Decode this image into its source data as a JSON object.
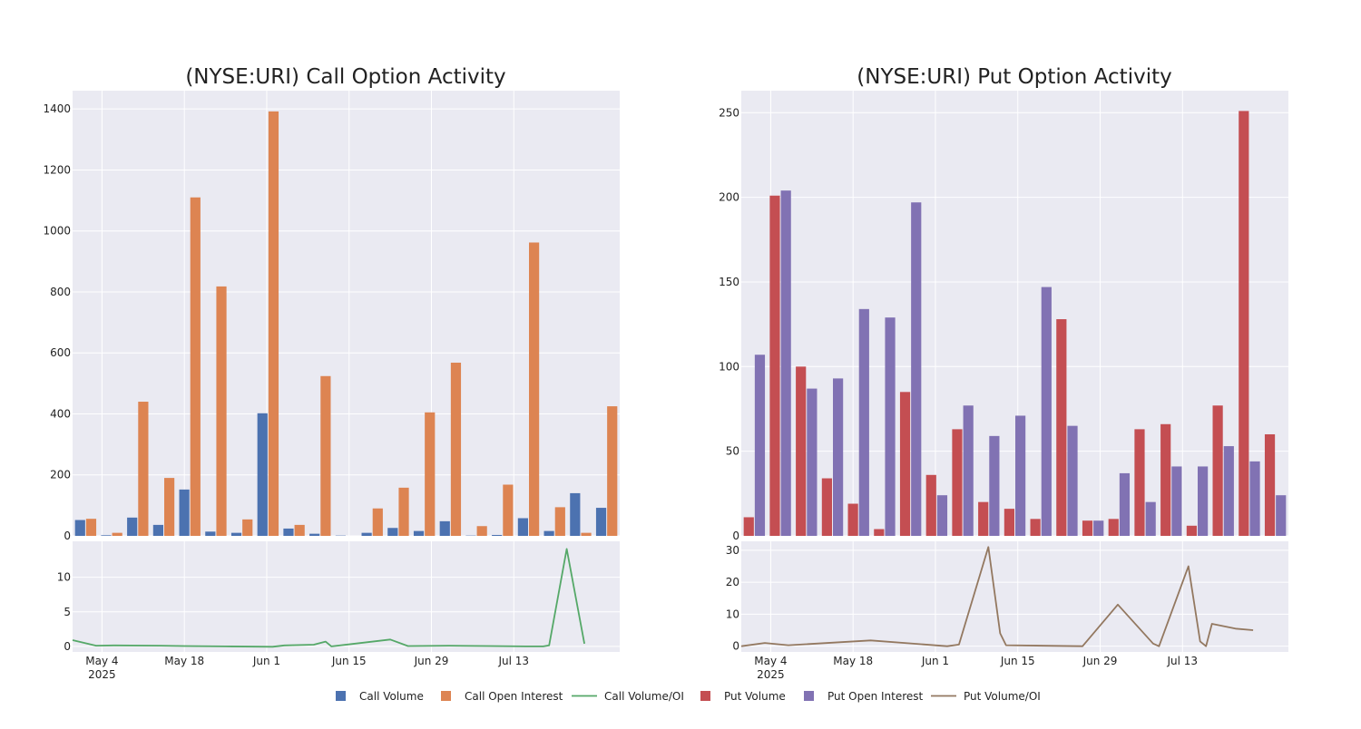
{
  "colors": {
    "call_volume": "#4c72b0",
    "call_open_interest": "#dd8452",
    "call_ratio": "#55a868",
    "put_volume": "#c44e52",
    "put_open_interest": "#8172b3",
    "put_ratio": "#937860",
    "panel_bg": "#eaeaf2",
    "grid": "#ffffff"
  },
  "legend": [
    {
      "label": "Call Volume",
      "kind": "square",
      "color_key": "call_volume"
    },
    {
      "label": "Call Open Interest",
      "kind": "square",
      "color_key": "call_open_interest"
    },
    {
      "label": "Call Volume/OI",
      "kind": "line",
      "color_key": "call_ratio"
    },
    {
      "label": "Put Volume",
      "kind": "square",
      "color_key": "put_volume"
    },
    {
      "label": "Put Open Interest",
      "kind": "square",
      "color_key": "put_open_interest"
    },
    {
      "label": "Put Volume/OI",
      "kind": "line",
      "color_key": "put_ratio"
    }
  ],
  "chart_data": [
    {
      "id": "call",
      "type": "bar",
      "title": "(NYSE:URI) Call Option Activity",
      "xlabel": "",
      "ylabel": "",
      "ylim": [
        0,
        1460
      ],
      "yticks": [
        0,
        200,
        400,
        600,
        800,
        1000,
        1200,
        1400
      ],
      "x_domain": [
        "2025-04-29",
        "2025-07-31"
      ],
      "x_ticks": [
        {
          "date": "2025-05-04",
          "label": "May 4",
          "sublabel": "2025"
        },
        {
          "date": "2025-05-18",
          "label": "May 18",
          "sublabel": ""
        },
        {
          "date": "2025-06-01",
          "label": "Jun 1",
          "sublabel": ""
        },
        {
          "date": "2025-06-15",
          "label": "Jun 15",
          "sublabel": ""
        },
        {
          "date": "2025-06-29",
          "label": "Jun 29",
          "sublabel": ""
        },
        {
          "date": "2025-07-13",
          "label": "Jul 13",
          "sublabel": ""
        }
      ],
      "series": [
        {
          "name": "Call Volume",
          "color_key": "call_volume",
          "values": [
            52,
            2,
            60,
            36,
            152,
            14,
            10,
            402,
            24,
            7,
            1,
            10,
            26,
            16,
            48,
            1,
            3,
            58,
            16,
            140,
            92
          ]
        },
        {
          "name": "Call Open Interest",
          "color_key": "call_open_interest",
          "values": [
            56,
            10,
            440,
            190,
            1110,
            818,
            54,
            1392,
            36,
            524,
            0,
            90,
            158,
            405,
            568,
            32,
            168,
            962,
            94,
            10,
            425
          ]
        }
      ],
      "ratio": {
        "name": "Call Volume/OI",
        "color_key": "call_ratio",
        "ylim": [
          -0.8,
          15.2
        ],
        "yticks": [
          0,
          5,
          10
        ],
        "points": [
          [
            "2025-04-29",
            0.9
          ],
          [
            "2025-05-03",
            0.1
          ],
          [
            "2025-05-06",
            0.15
          ],
          [
            "2025-05-14",
            0.1
          ],
          [
            "2025-05-18",
            0.05
          ],
          [
            "2025-05-25",
            0.0
          ],
          [
            "2025-06-02",
            -0.05
          ],
          [
            "2025-06-04",
            0.15
          ],
          [
            "2025-06-09",
            0.25
          ],
          [
            "2025-06-11",
            0.7
          ],
          [
            "2025-06-12",
            0.0
          ],
          [
            "2025-06-22",
            1.0
          ],
          [
            "2025-06-25",
            0.05
          ],
          [
            "2025-07-02",
            0.1
          ],
          [
            "2025-07-09",
            0.05
          ],
          [
            "2025-07-15",
            0.0
          ],
          [
            "2025-07-18",
            0.0
          ],
          [
            "2025-07-19",
            0.15
          ],
          [
            "2025-07-22",
            14.1
          ],
          [
            "2025-07-25",
            0.4
          ]
        ]
      }
    },
    {
      "id": "put",
      "type": "bar",
      "title": "(NYSE:URI) Put Option Activity",
      "xlabel": "",
      "ylabel": "",
      "ylim": [
        0,
        263
      ],
      "yticks": [
        0,
        50,
        100,
        150,
        200,
        250
      ],
      "x_domain": [
        "2025-04-29",
        "2025-07-31"
      ],
      "x_ticks": [
        {
          "date": "2025-05-04",
          "label": "May 4",
          "sublabel": "2025"
        },
        {
          "date": "2025-05-18",
          "label": "May 18",
          "sublabel": ""
        },
        {
          "date": "2025-06-01",
          "label": "Jun 1",
          "sublabel": ""
        },
        {
          "date": "2025-06-15",
          "label": "Jun 15",
          "sublabel": ""
        },
        {
          "date": "2025-06-29",
          "label": "Jun 29",
          "sublabel": ""
        },
        {
          "date": "2025-07-13",
          "label": "Jul 13",
          "sublabel": ""
        }
      ],
      "series": [
        {
          "name": "Put Volume",
          "color_key": "put_volume",
          "values": [
            11,
            201,
            100,
            34,
            19,
            4,
            85,
            36,
            63,
            20,
            16,
            10,
            128,
            9,
            10,
            63,
            66,
            6,
            77,
            251,
            60
          ]
        },
        {
          "name": "Put Open Interest",
          "color_key": "put_open_interest",
          "values": [
            107,
            204,
            87,
            93,
            134,
            129,
            197,
            24,
            77,
            59,
            71,
            147,
            65,
            9,
            37,
            20,
            41,
            41,
            53,
            44,
            24
          ]
        }
      ],
      "ratio": {
        "name": "Put Volume/OI",
        "color_key": "put_ratio",
        "ylim": [
          -1.8,
          32.8
        ],
        "yticks": [
          0,
          10,
          20,
          30
        ],
        "points": [
          [
            "2025-04-29",
            0.0
          ],
          [
            "2025-05-03",
            1.0
          ],
          [
            "2025-05-07",
            0.3
          ],
          [
            "2025-05-21",
            1.8
          ],
          [
            "2025-06-03",
            0.0
          ],
          [
            "2025-06-05",
            0.5
          ],
          [
            "2025-06-10",
            31.0
          ],
          [
            "2025-06-12",
            4.0
          ],
          [
            "2025-06-13",
            0.3
          ],
          [
            "2025-06-26",
            0.0
          ],
          [
            "2025-07-02",
            13.0
          ],
          [
            "2025-07-08",
            0.8
          ],
          [
            "2025-07-09",
            0.0
          ],
          [
            "2025-07-14",
            25.0
          ],
          [
            "2025-07-16",
            1.5
          ],
          [
            "2025-07-17",
            0.0
          ],
          [
            "2025-07-18",
            7.0
          ],
          [
            "2025-07-22",
            5.5
          ],
          [
            "2025-07-25",
            5.0
          ]
        ]
      }
    }
  ]
}
